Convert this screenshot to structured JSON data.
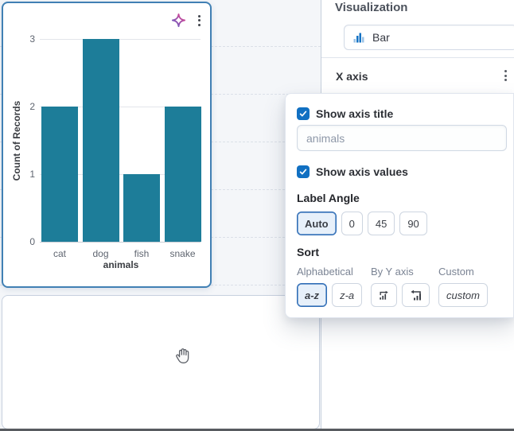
{
  "chart_data": {
    "type": "bar",
    "categories": [
      "cat",
      "dog",
      "fish",
      "snake"
    ],
    "values": [
      2,
      3,
      1,
      2
    ],
    "xlabel": "animals",
    "ylabel": "Count of Records",
    "yticks": [
      0,
      1,
      2,
      3
    ],
    "ylim": [
      0,
      3.2
    ],
    "bar_color": "#1d7d99",
    "grid": "horizontal",
    "legend": "none"
  },
  "sidebar": {
    "title": "Visualization",
    "chart_type_label": "Bar",
    "xaxis_section_title": "X axis"
  },
  "popover": {
    "show_axis_title_label": "Show axis title",
    "show_axis_title_checked": true,
    "axis_title_value": "animals",
    "show_axis_values_label": "Show axis values",
    "show_axis_values_checked": true,
    "label_angle_title": "Label Angle",
    "label_angle_options": [
      {
        "label": "Auto",
        "selected": true
      },
      {
        "label": "0",
        "selected": false
      },
      {
        "label": "45",
        "selected": false
      },
      {
        "label": "90",
        "selected": false
      }
    ],
    "sort_title": "Sort",
    "sort_groups": {
      "alphabetical": {
        "label": "Alphabetical",
        "az": "a-z",
        "za": "z-a",
        "selected": "a-z"
      },
      "by_y_axis": {
        "label": "By Y axis"
      },
      "custom": {
        "label": "Custom",
        "button": "custom"
      }
    }
  },
  "colors": {
    "bar": "#1d7d99",
    "primary": "#1170c2",
    "selected_panel_border": "#4180b4",
    "selected_button_bg": "#e7f0fa",
    "selected_button_border": "#2f6db6"
  }
}
